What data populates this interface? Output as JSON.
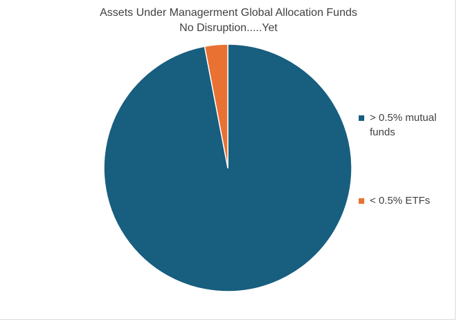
{
  "chart_data": {
    "type": "pie",
    "title": "Assets Under Managerment Global Allocation Funds",
    "subtitle": "No Disruption.....Yet",
    "legend_position": "right",
    "slices": [
      {
        "label": "> 0.5% mutual funds",
        "value": 97,
        "color": "#175e7f"
      },
      {
        "label": "< 0.5% ETFs",
        "value": 3,
        "color": "#e97132"
      }
    ]
  }
}
